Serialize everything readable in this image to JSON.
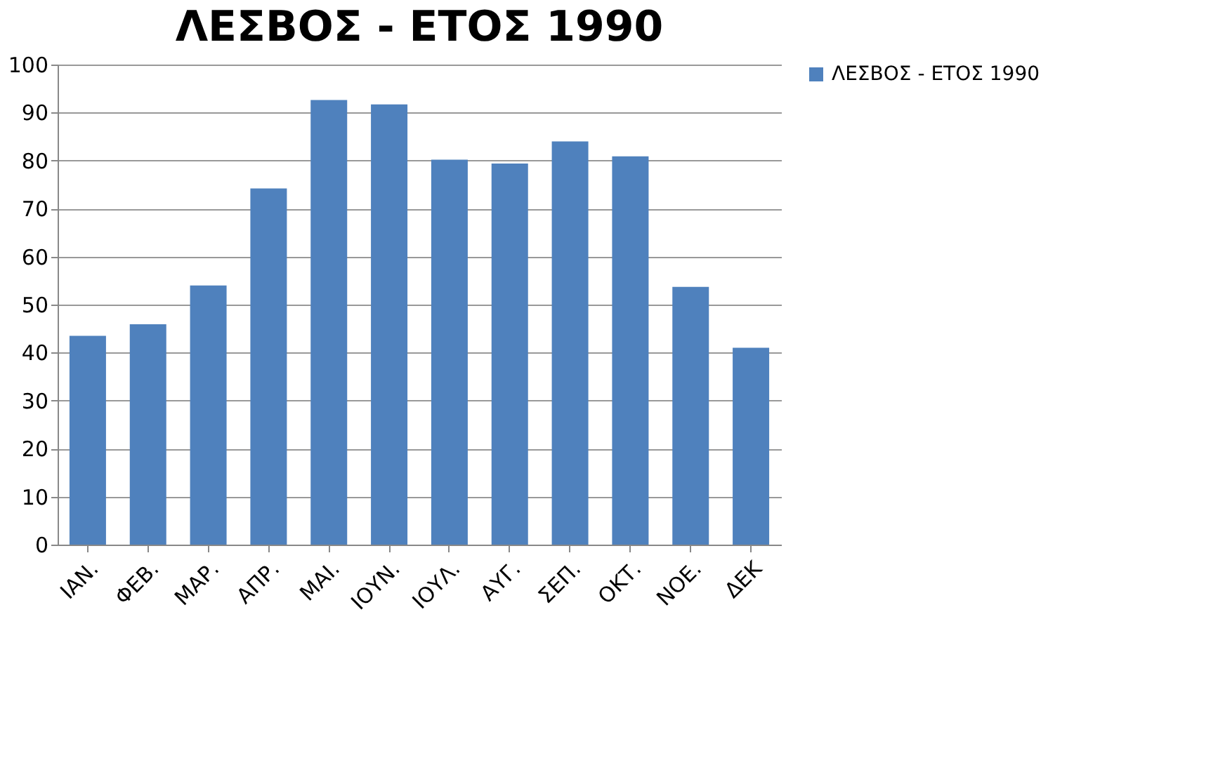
{
  "chart_data": {
    "type": "bar",
    "title": "ΛΕΣΒΟΣ - ΕΤΟΣ 1990",
    "categories": [
      "ΙΑΝ.",
      "ΦΕΒ.",
      "ΜΑΡ.",
      "ΑΠΡ.",
      "ΜΑΙ.",
      "ΙΟΥΝ.",
      "ΙΟΥΛ.",
      "ΑΥΓ.",
      "ΣΕΠ.",
      "ΟΚΤ.",
      "ΝΟΕ.",
      "ΔΕΚ"
    ],
    "series": [
      {
        "name": "ΛΕΣΒΟΣ - ΕΤΟΣ 1990",
        "color": "#4f81bd",
        "values": [
          43.5,
          45.9,
          54.0,
          74.2,
          92.6,
          91.7,
          80.2,
          79.4,
          84.0,
          80.9,
          53.7,
          41.0
        ]
      }
    ],
    "ylim": [
      0,
      100
    ],
    "yticks": [
      0,
      10,
      20,
      30,
      40,
      50,
      60,
      70,
      80,
      90,
      100
    ],
    "grid": "y",
    "legend": "right"
  }
}
